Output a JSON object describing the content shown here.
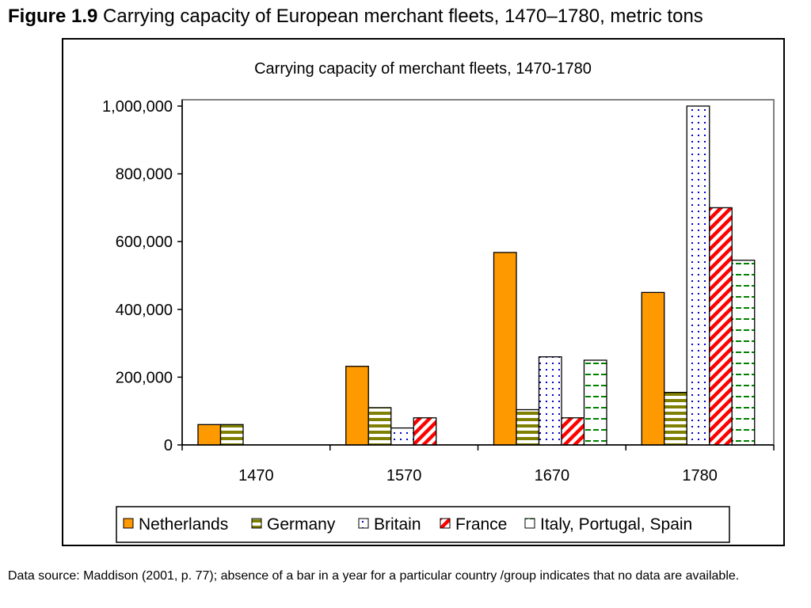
{
  "figure": {
    "label": "Figure 1.9",
    "title": " Carrying capacity of European merchant fleets, 1470–1780, metric tons"
  },
  "caption": "Data source: Maddison (2001, p. 77); absence of a bar in a year for a particular country /group indicates that no data are available.",
  "colors": {
    "netherlands": "#ff9900",
    "germany": "#808000",
    "britain": "#0000cc",
    "france": "#ff0000",
    "italy_portugal_spain": "#008000"
  },
  "chart_data": {
    "type": "bar",
    "title": "Carrying capacity of merchant fleets, 1470-1780",
    "xlabel": "",
    "ylabel": "",
    "ylim": [
      0,
      1000000
    ],
    "yticks": [
      "0",
      "200,000",
      "400,000",
      "600,000",
      "800,000",
      "1,000,000"
    ],
    "ytick_values": [
      0,
      200000,
      400000,
      600000,
      800000,
      1000000
    ],
    "categories": [
      "1470",
      "1570",
      "1670",
      "1780"
    ],
    "legend_position": "bottom",
    "grid": false,
    "series": [
      {
        "name": "Netherlands",
        "pattern": "solid",
        "values": [
          60000,
          232000,
          568000,
          450000
        ]
      },
      {
        "name": "Germany",
        "pattern": "horizontal-stripes",
        "values": [
          60000,
          110000,
          104000,
          155000
        ]
      },
      {
        "name": "Britain",
        "pattern": "dots",
        "values": [
          null,
          50000,
          260000,
          1000000
        ]
      },
      {
        "name": "France",
        "pattern": "diagonal-stripes",
        "values": [
          null,
          80000,
          80000,
          700000
        ]
      },
      {
        "name": "Italy, Portugal, Spain",
        "pattern": "dashes",
        "values": [
          null,
          null,
          250000,
          545000
        ]
      }
    ]
  }
}
